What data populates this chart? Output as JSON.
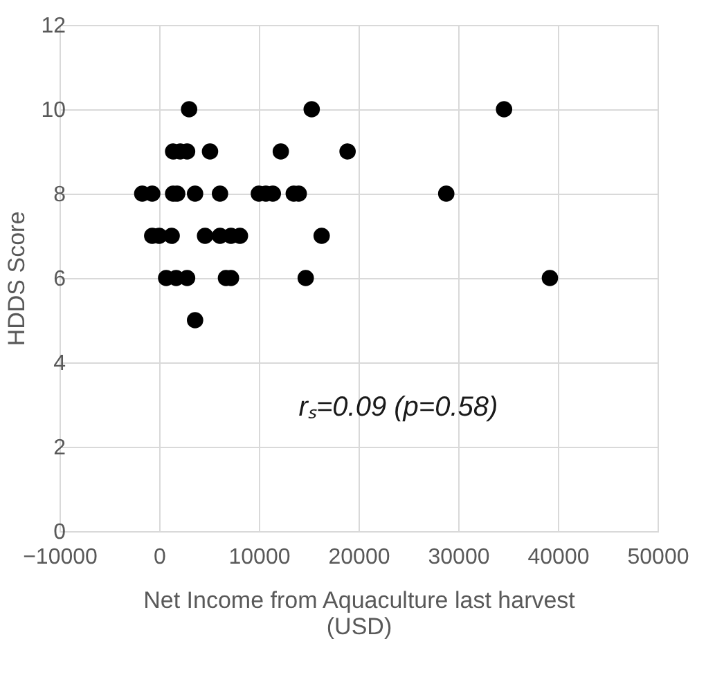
{
  "chart_data": {
    "type": "scatter",
    "xlabel": "Net Income from Aquaculture last harvest (USD)",
    "ylabel": "HDDS Score",
    "x": [
      -1700,
      -700,
      1400,
      1800,
      3600,
      6100,
      10000,
      10700,
      11400,
      13500,
      14000,
      28800,
      -700,
      0,
      1250,
      4600,
      6100,
      7200,
      8100,
      16300,
      700,
      1700,
      2800,
      6700,
      7200,
      14700,
      39200,
      1400,
      2100,
      2800,
      5100,
      12200,
      18900,
      3000,
      15300,
      34600,
      3600
    ],
    "values": [
      8,
      8,
      8,
      8,
      8,
      8,
      8,
      8,
      8,
      8,
      8,
      8,
      7,
      7,
      7,
      7,
      7,
      7,
      7,
      7,
      6,
      6,
      6,
      6,
      6,
      6,
      6,
      9,
      9,
      9,
      9,
      9,
      9,
      10,
      10,
      10,
      5
    ],
    "color": "#000000",
    "marker": "circle",
    "xlim": [
      -10000,
      50000
    ],
    "xticks": [
      -10000,
      0,
      10000,
      20000,
      30000,
      40000,
      50000
    ],
    "ylim": [
      0,
      12
    ],
    "yticks": [
      0,
      2,
      4,
      6,
      8,
      10,
      12
    ],
    "grid": true,
    "annotations": [
      "rₛ=0.09 (p=0.58)"
    ]
  }
}
